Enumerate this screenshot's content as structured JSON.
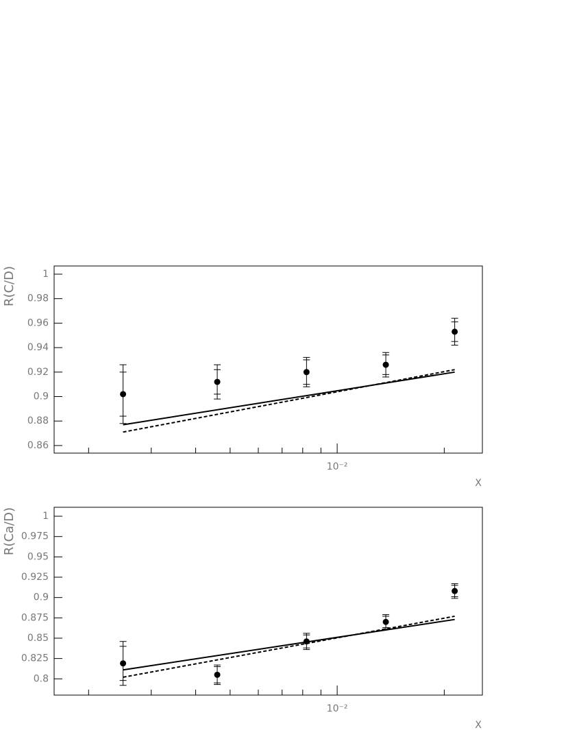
{
  "chart_data": [
    {
      "type": "scatter",
      "y_label": "R(C/D)",
      "x_label": "X",
      "xscale": "log",
      "xlim": [
        0.0016,
        0.0256
      ],
      "xticks": [
        {
          "value": 0.01,
          "label": "10⁻²"
        }
      ],
      "xminorticks": [
        0.002,
        0.003,
        0.004,
        0.005,
        0.006,
        0.007,
        0.008,
        0.009,
        0.02
      ],
      "ylim": [
        0.8538,
        1.0067
      ],
      "yticks": [
        0.86,
        0.88,
        0.9,
        0.92,
        0.94,
        0.96,
        0.98,
        1
      ],
      "x": [
        0.0025,
        0.0046,
        0.0082,
        0.0137,
        0.0214
      ],
      "series": [
        {
          "style": "points",
          "color": "#000000",
          "values": [
            0.902,
            0.912,
            0.92,
            0.926,
            0.953
          ],
          "errors": [
            0.018,
            0.01,
            0.01,
            0.008,
            0.008
          ],
          "errors_total": [
            0.024,
            0.014,
            0.012,
            0.01,
            0.011
          ]
        },
        {
          "style": "solid",
          "color": "#000000",
          "x": [
            0.0025,
            0.0214
          ],
          "values": [
            0.877,
            0.92
          ]
        },
        {
          "style": "dashed",
          "color": "#000000",
          "x": [
            0.0025,
            0.0214
          ],
          "values": [
            0.871,
            0.922
          ]
        }
      ]
    },
    {
      "type": "scatter",
      "y_label": "R(Ca/D)",
      "x_label": "X",
      "xscale": "log",
      "xlim": [
        0.0016,
        0.0256
      ],
      "xticks": [
        {
          "value": 0.01,
          "label": "10⁻²"
        }
      ],
      "xminorticks": [
        0.002,
        0.003,
        0.004,
        0.005,
        0.006,
        0.007,
        0.008,
        0.009,
        0.02
      ],
      "ylim": [
        0.78,
        1.011
      ],
      "yticks": [
        0.8,
        0.825,
        0.85,
        0.875,
        0.9,
        0.925,
        0.95,
        0.975,
        1
      ],
      "x": [
        0.0025,
        0.0046,
        0.0082,
        0.0137,
        0.0214
      ],
      "series": [
        {
          "style": "points",
          "color": "#000000",
          "values": [
            0.819,
            0.805,
            0.846,
            0.87,
            0.908
          ],
          "errors": [
            0.021,
            0.01,
            0.008,
            0.007,
            0.007
          ],
          "errors_total": [
            0.027,
            0.012,
            0.01,
            0.009,
            0.009
          ]
        },
        {
          "style": "solid",
          "color": "#000000",
          "x": [
            0.0025,
            0.0214
          ],
          "values": [
            0.811,
            0.873
          ]
        },
        {
          "style": "dashed",
          "color": "#000000",
          "x": [
            0.0025,
            0.0214
          ],
          "values": [
            0.802,
            0.877
          ]
        }
      ]
    }
  ]
}
